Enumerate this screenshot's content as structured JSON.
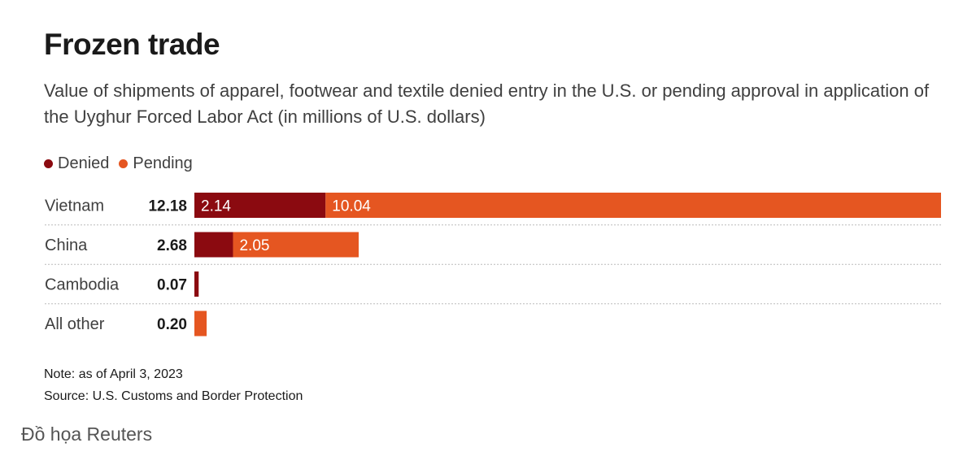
{
  "title": "Frozen trade",
  "subtitle": "Value of shipments of apparel, footwear and textile denied entry in the U.S. or pending approval in application of the Uyghur Forced Labor Act (in millions of U.S. dollars)",
  "legend": [
    {
      "label": "Denied",
      "color": "#8b0a10"
    },
    {
      "label": "Pending",
      "color": "#e55621"
    }
  ],
  "chart_data": {
    "type": "bar",
    "orientation": "horizontal",
    "stacked": true,
    "categories": [
      "Vietnam",
      "China",
      "Cambodia",
      "All other"
    ],
    "totals": [
      "12.18",
      "2.68",
      "0.07",
      "0.20"
    ],
    "series": [
      {
        "name": "Denied",
        "color": "#8b0a10",
        "values": [
          2.14,
          0.63,
          0.07,
          0
        ],
        "labels": [
          "2.14",
          "",
          "",
          ""
        ]
      },
      {
        "name": "Pending",
        "color": "#e55621",
        "values": [
          10.04,
          2.05,
          0,
          0.2
        ],
        "labels": [
          "10.04",
          "2.05",
          "",
          ""
        ]
      }
    ],
    "xlim": [
      0,
      12.18
    ],
    "grid": false,
    "legend_position": "top-left"
  },
  "notes": {
    "note": "Note: as of April 3, 2023",
    "source": "Source: U.S. Customs and Border Protection"
  },
  "credit": "Đồ họa Reuters"
}
